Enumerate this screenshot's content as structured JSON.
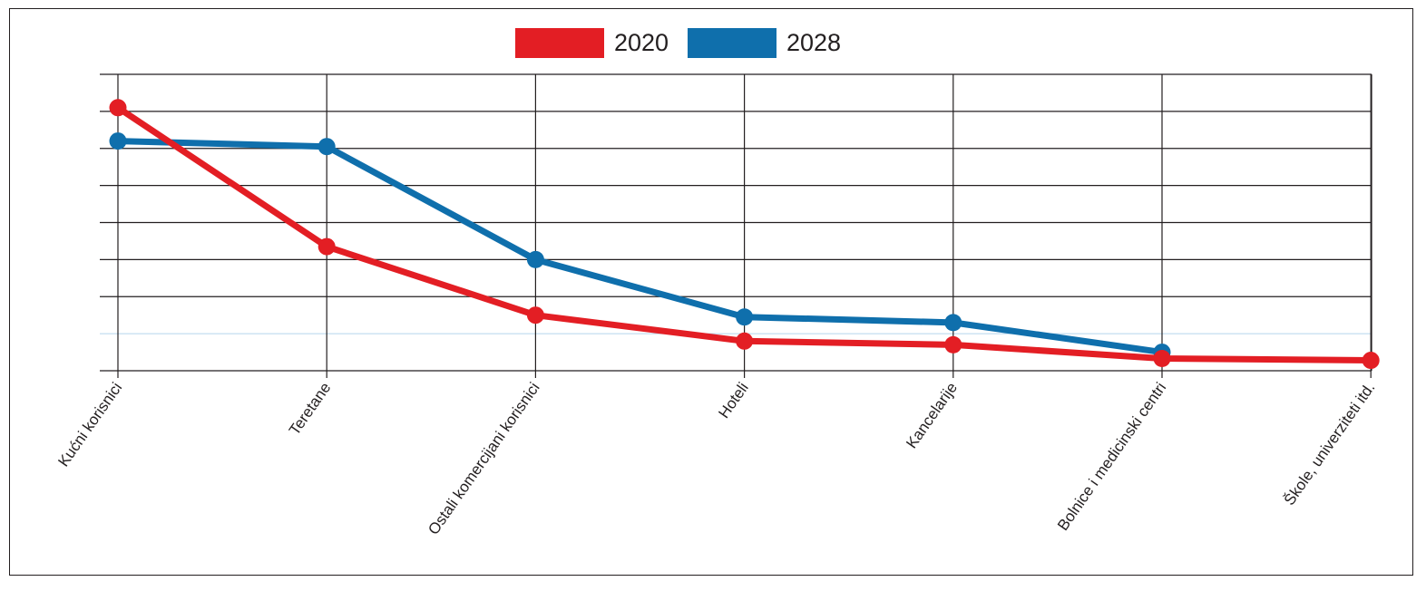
{
  "chart_data": {
    "type": "line",
    "title": "",
    "xlabel": "",
    "ylabel": "",
    "categories": [
      "Kućni korisnici",
      "Teretane",
      "Ostali komercijani korisnici",
      "Hoteli",
      "Kancelarije",
      "Bolnice i medicinski centri",
      "Škole, univerziteti itd."
    ],
    "ylim": [
      0,
      8
    ],
    "grid": true,
    "legend_position": "top-center",
    "series": [
      {
        "name": "2020",
        "color": "#e31e24",
        "values": [
          7.1,
          3.35,
          1.5,
          0.8,
          0.7,
          0.33,
          0.28
        ]
      },
      {
        "name": "2028",
        "color": "#0f6fac",
        "values": [
          6.2,
          6.05,
          3.0,
          1.45,
          1.3,
          0.5,
          null
        ]
      }
    ]
  }
}
